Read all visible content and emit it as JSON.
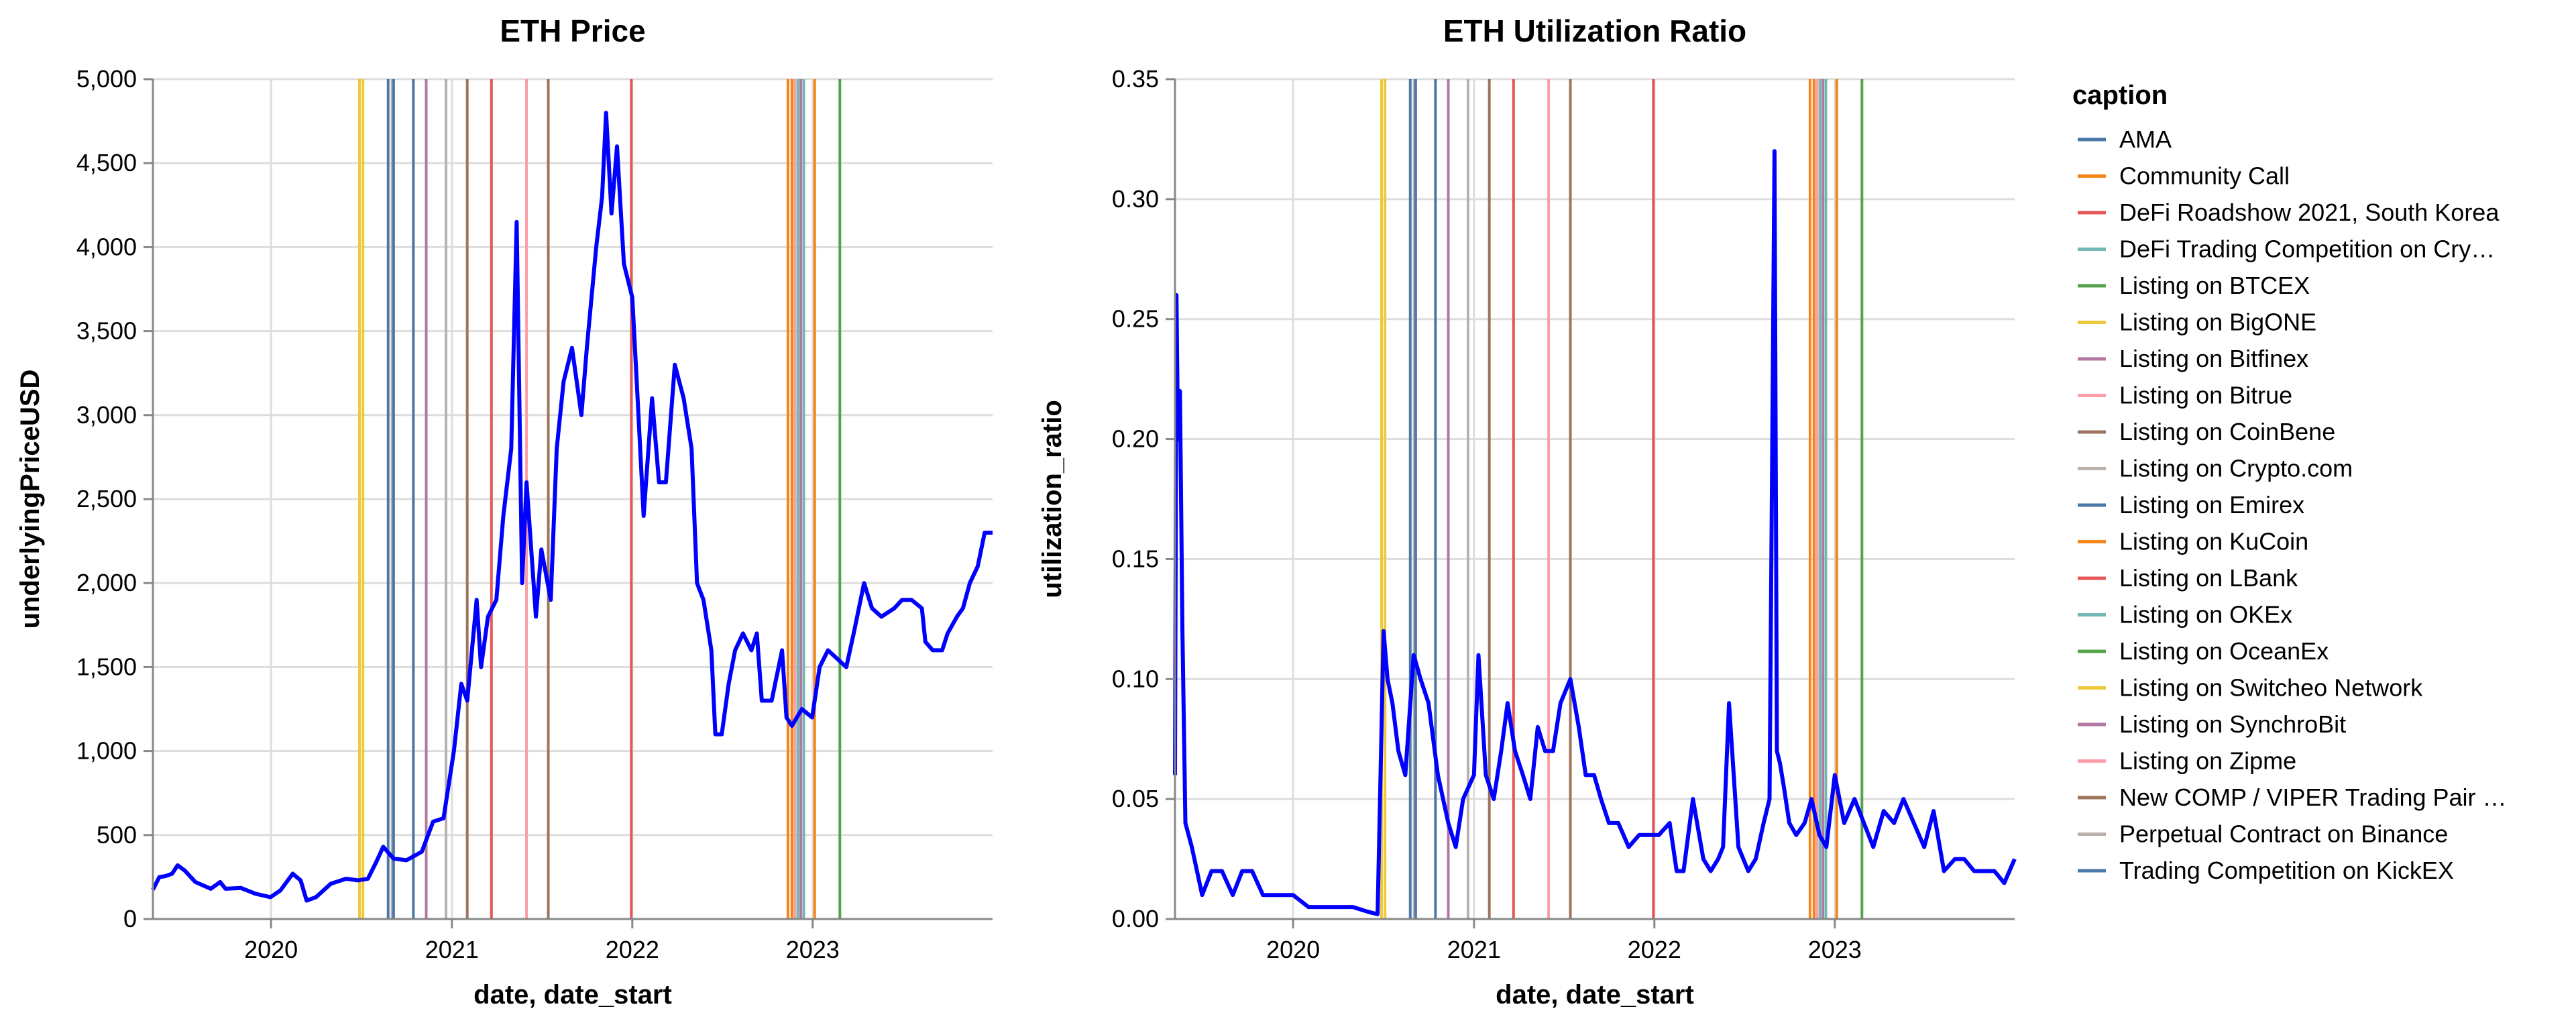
{
  "legend": {
    "title": "caption",
    "items": [
      {
        "label": "AMA",
        "color": "#4c78a8"
      },
      {
        "label": "Community Call",
        "color": "#f58518"
      },
      {
        "label": "DeFi Roadshow 2021, South Korea",
        "color": "#e45756"
      },
      {
        "label": "DeFi Trading Competition on Cry…",
        "color": "#72b7b2"
      },
      {
        "label": "Listing on BTCEX",
        "color": "#54a24b"
      },
      {
        "label": "Listing on BigONE",
        "color": "#eeca3b"
      },
      {
        "label": "Listing on Bitfinex",
        "color": "#b279a2"
      },
      {
        "label": "Listing on Bitrue",
        "color": "#ff9da6"
      },
      {
        "label": "Listing on CoinBene",
        "color": "#9d755d"
      },
      {
        "label": "Listing on Crypto.com",
        "color": "#bab0ac"
      },
      {
        "label": "Listing on Emirex",
        "color": "#4c78a8"
      },
      {
        "label": "Listing on KuCoin",
        "color": "#f58518"
      },
      {
        "label": "Listing on LBank",
        "color": "#e45756"
      },
      {
        "label": "Listing on OKEx",
        "color": "#72b7b2"
      },
      {
        "label": "Listing on OceanEx",
        "color": "#54a24b"
      },
      {
        "label": "Listing on Switcheo Network",
        "color": "#eeca3b"
      },
      {
        "label": "Listing on SynchroBit",
        "color": "#b279a2"
      },
      {
        "label": "Listing on Zipme",
        "color": "#ff9da6"
      },
      {
        "label": "New COMP / VIPER Trading Pair …",
        "color": "#9d755d"
      },
      {
        "label": "Perpetual Contract on Binance",
        "color": "#bab0ac"
      },
      {
        "label": "Trading Competition on KickEX",
        "color": "#4c78a8"
      }
    ]
  },
  "chart_data": [
    {
      "type": "line",
      "title": "ETH Price",
      "xlabel": "date, date_start",
      "ylabel": "underlyingPriceUSD",
      "xlim": [
        "2019-05-07",
        "2023-12-31"
      ],
      "ylim": [
        0,
        5000
      ],
      "grid": true,
      "line_color": "#0000ff",
      "x_ticks": [
        "2020",
        "2021",
        "2022",
        "2023"
      ],
      "y_ticks": [
        "0",
        "500",
        "1,000",
        "1,500",
        "2,000",
        "2,500",
        "3,000",
        "3,500",
        "4,000",
        "4,500",
        "5,000"
      ],
      "series": [
        {
          "x": [
            "2019-05-07",
            "2019-05-20",
            "2019-06-01",
            "2019-06-15",
            "2019-06-26",
            "2019-07-10",
            "2019-08-01",
            "2019-09-01",
            "2019-09-20",
            "2019-10-01",
            "2019-11-01",
            "2019-12-01",
            "2019-12-31",
            "2020-01-20",
            "2020-02-14",
            "2020-03-01",
            "2020-03-13",
            "2020-04-01",
            "2020-05-01",
            "2020-06-01",
            "2020-06-25",
            "2020-07-15",
            "2020-08-01",
            "2020-08-15",
            "2020-09-05",
            "2020-10-01",
            "2020-11-01",
            "2020-11-24",
            "2020-12-15",
            "2021-01-05",
            "2021-01-20",
            "2021-02-01",
            "2021-02-20",
            "2021-03-01",
            "2021-03-15",
            "2021-04-01",
            "2021-04-15",
            "2021-05-01",
            "2021-05-12",
            "2021-05-23",
            "2021-06-01",
            "2021-06-20",
            "2021-07-01",
            "2021-07-20",
            "2021-08-01",
            "2021-08-15",
            "2021-09-01",
            "2021-09-20",
            "2021-10-01",
            "2021-10-20",
            "2021-11-01",
            "2021-11-09",
            "2021-11-20",
            "2021-12-01",
            "2021-12-15",
            "2022-01-01",
            "2022-01-10",
            "2022-01-24",
            "2022-02-10",
            "2022-02-24",
            "2022-03-10",
            "2022-03-28",
            "2022-04-15",
            "2022-05-01",
            "2022-05-12",
            "2022-05-25",
            "2022-06-10",
            "2022-06-18",
            "2022-07-01",
            "2022-07-15",
            "2022-07-28",
            "2022-08-13",
            "2022-08-30",
            "2022-09-10",
            "2022-09-20",
            "2022-10-10",
            "2022-10-31",
            "2022-11-09",
            "2022-11-20",
            "2022-12-10",
            "2022-12-31",
            "2023-01-15",
            "2023-02-01",
            "2023-03-10",
            "2023-03-25",
            "2023-04-15",
            "2023-05-01",
            "2023-05-20",
            "2023-06-15",
            "2023-07-01",
            "2023-07-20",
            "2023-08-10",
            "2023-08-17",
            "2023-09-01",
            "2023-09-20",
            "2023-10-01",
            "2023-10-20",
            "2023-11-01",
            "2023-11-15",
            "2023-12-01",
            "2023-12-15",
            "2023-12-31"
          ],
          "y": [
            175,
            250,
            255,
            270,
            320,
            290,
            220,
            180,
            220,
            180,
            185,
            150,
            130,
            170,
            270,
            230,
            110,
            130,
            210,
            240,
            230,
            240,
            340,
            430,
            360,
            350,
            400,
            580,
            600,
            1000,
            1400,
            1300,
            1900,
            1500,
            1800,
            1900,
            2400,
            2800,
            4150,
            2000,
            2600,
            1800,
            2200,
            1900,
            2800,
            3200,
            3400,
            3000,
            3400,
            4000,
            4300,
            4800,
            4200,
            4600,
            3900,
            3700,
            3200,
            2400,
            3100,
            2600,
            2600,
            3300,
            3100,
            2800,
            2000,
            1900,
            1600,
            1100,
            1100,
            1400,
            1600,
            1700,
            1600,
            1700,
            1300,
            1300,
            1600,
            1200,
            1150,
            1250,
            1200,
            1500,
            1600,
            1500,
            1700,
            2000,
            1850,
            1800,
            1850,
            1900,
            1900,
            1850,
            1650,
            1600,
            1600,
            1700,
            1800,
            1850,
            2000,
            2100,
            2300,
            2300
          ]
        }
      ],
      "events": [
        {
          "date": "2020-06-28",
          "caption": "Listing on Switcheo Network"
        },
        {
          "date": "2020-07-05",
          "caption": "Listing on BigONE"
        },
        {
          "date": "2020-08-25",
          "caption": "AMA"
        },
        {
          "date": "2020-09-02",
          "caption": "Perpetual Contract on Binance"
        },
        {
          "date": "2020-09-05",
          "caption": "Listing on Emirex"
        },
        {
          "date": "2020-10-15",
          "caption": "Trading Competition on KickEX"
        },
        {
          "date": "2020-11-10",
          "caption": "Listing on SynchroBit"
        },
        {
          "date": "2020-12-20",
          "caption": "Listing on Crypto.com"
        },
        {
          "date": "2021-02-01",
          "caption": "Listing on CoinBene"
        },
        {
          "date": "2021-03-22",
          "caption": "Listing on LBank"
        },
        {
          "date": "2021-06-01",
          "caption": "Listing on Zipme"
        },
        {
          "date": "2021-07-15",
          "caption": "New COMP / VIPER Trading Pair …"
        },
        {
          "date": "2021-12-30",
          "caption": "DeFi Roadshow 2021, South Korea"
        },
        {
          "date": "2022-11-12",
          "caption": "Community Call"
        },
        {
          "date": "2022-11-20",
          "caption": "Listing on KuCoin"
        },
        {
          "date": "2022-11-26",
          "caption": "Listing on Bitrue"
        },
        {
          "date": "2022-12-02",
          "caption": "DeFi Trading Competition on Cry…"
        },
        {
          "date": "2022-12-08",
          "caption": "Listing on Bitfinex"
        },
        {
          "date": "2022-12-14",
          "caption": "Listing on OKEx"
        },
        {
          "date": "2023-01-05",
          "caption": "Community Call"
        },
        {
          "date": "2023-02-25",
          "caption": "Listing on BTCEX"
        }
      ]
    },
    {
      "type": "line",
      "title": "ETH Utilization Ratio",
      "xlabel": "date, date_start",
      "ylabel": "utilization_ratio",
      "xlim": [
        "2019-05-07",
        "2023-12-31"
      ],
      "ylim": [
        0,
        0.35
      ],
      "grid": true,
      "line_color": "#0000ff",
      "x_ticks": [
        "2020",
        "2021",
        "2022",
        "2023"
      ],
      "y_ticks": [
        "0.00",
        "0.05",
        "0.10",
        "0.15",
        "0.20",
        "0.25",
        "0.30",
        "0.35"
      ],
      "series": [
        {
          "x": [
            "2019-05-07",
            "2019-05-10",
            "2019-05-13",
            "2019-05-17",
            "2019-05-22",
            "2019-05-28",
            "2019-06-10",
            "2019-07-01",
            "2019-07-20",
            "2019-08-10",
            "2019-09-01",
            "2019-09-20",
            "2019-10-10",
            "2019-11-01",
            "2019-12-01",
            "2020-01-01",
            "2020-02-01",
            "2020-03-01",
            "2020-04-01",
            "2020-05-01",
            "2020-06-01",
            "2020-06-20",
            "2020-07-02",
            "2020-07-10",
            "2020-07-20",
            "2020-08-01",
            "2020-08-15",
            "2020-09-01",
            "2020-09-15",
            "2020-10-01",
            "2020-10-20",
            "2020-11-10",
            "2020-11-25",
            "2020-12-10",
            "2021-01-01",
            "2021-01-10",
            "2021-01-25",
            "2021-02-10",
            "2021-02-25",
            "2021-03-10",
            "2021-03-25",
            "2021-04-10",
            "2021-04-25",
            "2021-05-10",
            "2021-05-25",
            "2021-06-10",
            "2021-06-25",
            "2021-07-15",
            "2021-08-01",
            "2021-08-15",
            "2021-09-01",
            "2021-09-15",
            "2021-10-01",
            "2021-10-20",
            "2021-11-10",
            "2021-12-01",
            "2021-12-20",
            "2022-01-10",
            "2022-02-01",
            "2022-02-15",
            "2022-03-01",
            "2022-03-20",
            "2022-04-10",
            "2022-04-25",
            "2022-05-10",
            "2022-05-20",
            "2022-06-01",
            "2022-06-20",
            "2022-07-10",
            "2022-07-25",
            "2022-08-10",
            "2022-08-22",
            "2022-09-01",
            "2022-09-06",
            "2022-09-12",
            "2022-09-20",
            "2022-10-01",
            "2022-10-15",
            "2022-11-01",
            "2022-11-15",
            "2022-12-01",
            "2022-12-15",
            "2023-01-01",
            "2023-01-20",
            "2023-02-10",
            "2023-03-01",
            "2023-03-20",
            "2023-04-10",
            "2023-05-01",
            "2023-05-20",
            "2023-06-10",
            "2023-07-01",
            "2023-07-20",
            "2023-08-10",
            "2023-09-01",
            "2023-09-20",
            "2023-10-10",
            "2023-11-01",
            "2023-11-20",
            "2023-12-10",
            "2023-12-31"
          ],
          "y": [
            0.06,
            0.26,
            0.2,
            0.22,
            0.12,
            0.04,
            0.03,
            0.01,
            0.02,
            0.02,
            0.01,
            0.02,
            0.02,
            0.01,
            0.01,
            0.01,
            0.005,
            0.005,
            0.005,
            0.005,
            0.003,
            0.002,
            0.12,
            0.1,
            0.09,
            0.07,
            0.06,
            0.11,
            0.1,
            0.09,
            0.06,
            0.04,
            0.03,
            0.05,
            0.06,
            0.11,
            0.06,
            0.05,
            0.07,
            0.09,
            0.07,
            0.06,
            0.05,
            0.08,
            0.07,
            0.07,
            0.09,
            0.1,
            0.08,
            0.06,
            0.06,
            0.05,
            0.04,
            0.04,
            0.03,
            0.035,
            0.035,
            0.035,
            0.04,
            0.02,
            0.02,
            0.05,
            0.025,
            0.02,
            0.025,
            0.03,
            0.09,
            0.03,
            0.02,
            0.025,
            0.04,
            0.05,
            0.32,
            0.07,
            0.065,
            0.055,
            0.04,
            0.035,
            0.04,
            0.05,
            0.035,
            0.03,
            0.06,
            0.04,
            0.05,
            0.04,
            0.03,
            0.045,
            0.04,
            0.05,
            0.04,
            0.03,
            0.045,
            0.02,
            0.025,
            0.025,
            0.02,
            0.02,
            0.02,
            0.015,
            0.025
          ]
        }
      ],
      "events": [
        {
          "date": "2020-06-28",
          "caption": "Listing on Switcheo Network"
        },
        {
          "date": "2020-07-05",
          "caption": "Listing on BigONE"
        },
        {
          "date": "2020-08-25",
          "caption": "AMA"
        },
        {
          "date": "2020-09-02",
          "caption": "Perpetual Contract on Binance"
        },
        {
          "date": "2020-09-05",
          "caption": "Listing on Emirex"
        },
        {
          "date": "2020-10-15",
          "caption": "Trading Competition on KickEX"
        },
        {
          "date": "2020-11-10",
          "caption": "Listing on SynchroBit"
        },
        {
          "date": "2020-12-20",
          "caption": "Listing on Crypto.com"
        },
        {
          "date": "2021-02-01",
          "caption": "Listing on CoinBene"
        },
        {
          "date": "2021-03-22",
          "caption": "Listing on LBank"
        },
        {
          "date": "2021-06-01",
          "caption": "Listing on Zipme"
        },
        {
          "date": "2021-07-15",
          "caption": "New COMP / VIPER Trading Pair …"
        },
        {
          "date": "2021-12-30",
          "caption": "DeFi Roadshow 2021, South Korea"
        },
        {
          "date": "2022-11-12",
          "caption": "Community Call"
        },
        {
          "date": "2022-11-20",
          "caption": "Listing on KuCoin"
        },
        {
          "date": "2022-11-26",
          "caption": "Listing on Bitrue"
        },
        {
          "date": "2022-12-02",
          "caption": "DeFi Trading Competition on Cry…"
        },
        {
          "date": "2022-12-08",
          "caption": "Listing on Bitfinex"
        },
        {
          "date": "2022-12-14",
          "caption": "Listing on OKEx"
        },
        {
          "date": "2023-01-05",
          "caption": "Community Call"
        },
        {
          "date": "2023-02-25",
          "caption": "Listing on BTCEX"
        }
      ]
    }
  ]
}
